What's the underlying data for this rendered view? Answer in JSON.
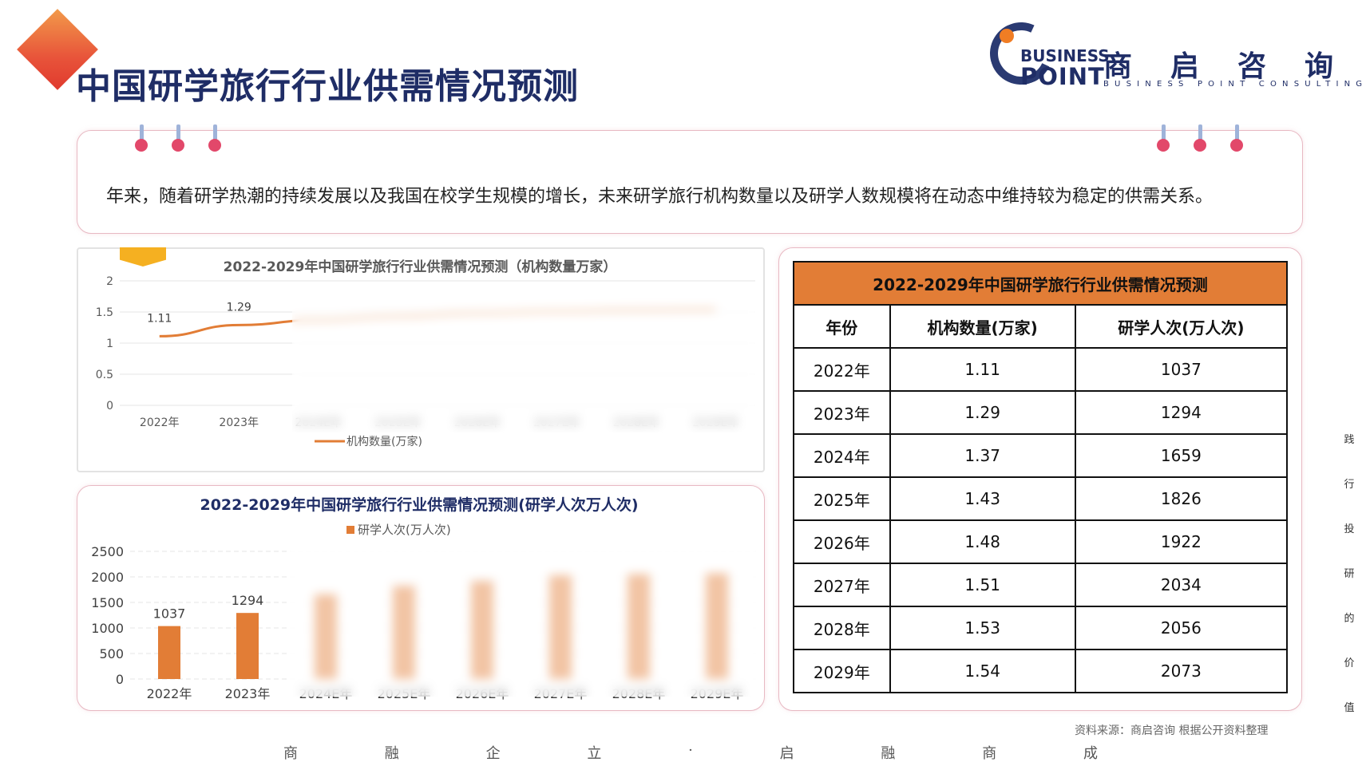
{
  "title": "中国研学旅行行业供需情况预测",
  "logo": {
    "line1": "BUSINESS",
    "line2": "POINT",
    "cn": "商启咨询",
    "en": "BUSINESS POINT CONSULTING",
    "colors": {
      "navy": "#1f2d66",
      "orange": "#f07d24"
    }
  },
  "intro": "年来，随着研学热潮的持续发展以及我国在校学生规模的增长，未来研学旅行机构数量以及研学人数规模将在动态中维持较为稳定的供需关系。",
  "chart_data": [
    {
      "type": "line",
      "title": "2022-2029年中国研学旅行行业供需情况预测（机构数量万家）",
      "categories": [
        "2022年",
        "2023年",
        "2024E年",
        "2025E年",
        "2026E年",
        "2027E年",
        "2028E年",
        "2029E年"
      ],
      "series": [
        {
          "name": "机构数量(万家)",
          "values": [
            1.11,
            1.29,
            1.37,
            1.43,
            1.48,
            1.51,
            1.53,
            1.54
          ],
          "color": "#e27d36"
        }
      ],
      "data_labels": [
        "1.11",
        "1.29"
      ],
      "yticks": [
        "0",
        "0.5",
        "1",
        "1.5",
        "2"
      ],
      "ylim": [
        0,
        2
      ],
      "grid": true,
      "legend": "bottom"
    },
    {
      "type": "bar",
      "title": "2022-2029年中国研学旅行行业供需情况预测(研学人次万人次)",
      "categories": [
        "2022年",
        "2023年",
        "2024E年",
        "2025E年",
        "2026E年",
        "2027E年",
        "2028E年",
        "2029E年"
      ],
      "series": [
        {
          "name": "研学人次(万人次)",
          "values": [
            1037,
            1294,
            1659,
            1826,
            1922,
            2034,
            2056,
            2073
          ],
          "color": "#e27d36"
        }
      ],
      "data_labels": [
        "1037",
        "1294"
      ],
      "yticks": [
        "0",
        "500",
        "1000",
        "1500",
        "2000",
        "2500"
      ],
      "ylim": [
        0,
        2500
      ],
      "grid": true,
      "legend": "top"
    }
  ],
  "table": {
    "caption": "2022-2029年中国研学旅行行业供需情况预测",
    "headers": [
      "年份",
      "机构数量(万家)",
      "研学人次(万人次)"
    ],
    "rows": [
      [
        "2022年",
        "1.11",
        "1037"
      ],
      [
        "2023年",
        "1.29",
        "1294"
      ],
      [
        "2024年",
        "1.37",
        "1659"
      ],
      [
        "2025年",
        "1.43",
        "1826"
      ],
      [
        "2026年",
        "1.48",
        "1922"
      ],
      [
        "2027年",
        "1.51",
        "2034"
      ],
      [
        "2028年",
        "1.53",
        "2056"
      ],
      [
        "2029年",
        "1.54",
        "2073"
      ]
    ],
    "header_color": "#e27d36"
  },
  "source": "资料来源：商启咨询 根据公开资料整理",
  "slogan": [
    "商",
    "融",
    "企",
    "立",
    "·",
    "启",
    "融",
    "商",
    "成"
  ],
  "side_text": [
    "践",
    "行",
    "投",
    "研",
    "的",
    "价",
    "值"
  ]
}
